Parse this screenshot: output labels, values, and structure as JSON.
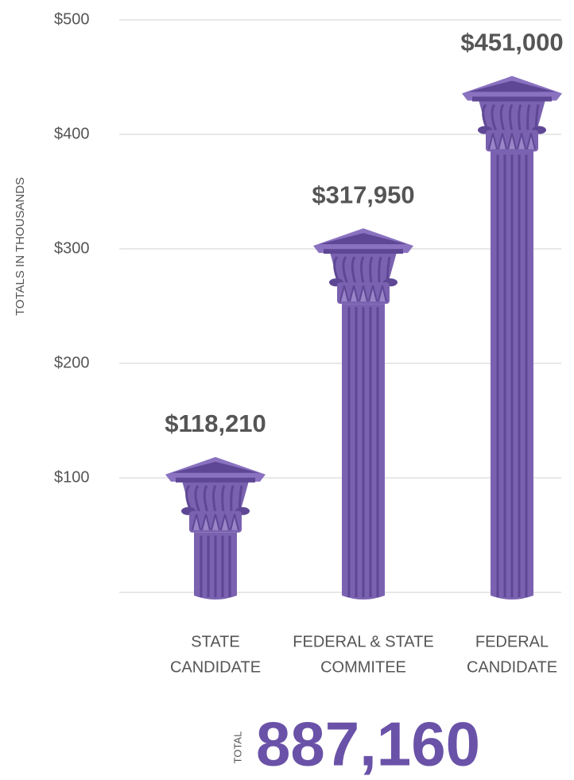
{
  "chart_data": {
    "type": "bar",
    "y_label": "TOTALS IN THOUSANDS",
    "categories": [
      [
        "STATE",
        "CANDIDATE"
      ],
      [
        "FEDERAL & STATE",
        "COMMITEE"
      ],
      [
        "FEDERAL",
        "CANDIDATE"
      ]
    ],
    "values": [
      118.21,
      317.95,
      451
    ],
    "value_labels": [
      "$118,210",
      "$317,950",
      "$451,000"
    ],
    "color": "#7b62b0",
    "ylim": [
      0,
      500
    ],
    "yticks": [
      {
        "value": 100,
        "label": "$100"
      },
      {
        "value": 200,
        "label": "$200"
      },
      {
        "value": 300,
        "label": "$300"
      },
      {
        "value": 400,
        "label": "$400"
      },
      {
        "value": 500,
        "label": "$500"
      }
    ],
    "grid": true,
    "total_label": "TOTAL",
    "total_text": "887,160"
  }
}
